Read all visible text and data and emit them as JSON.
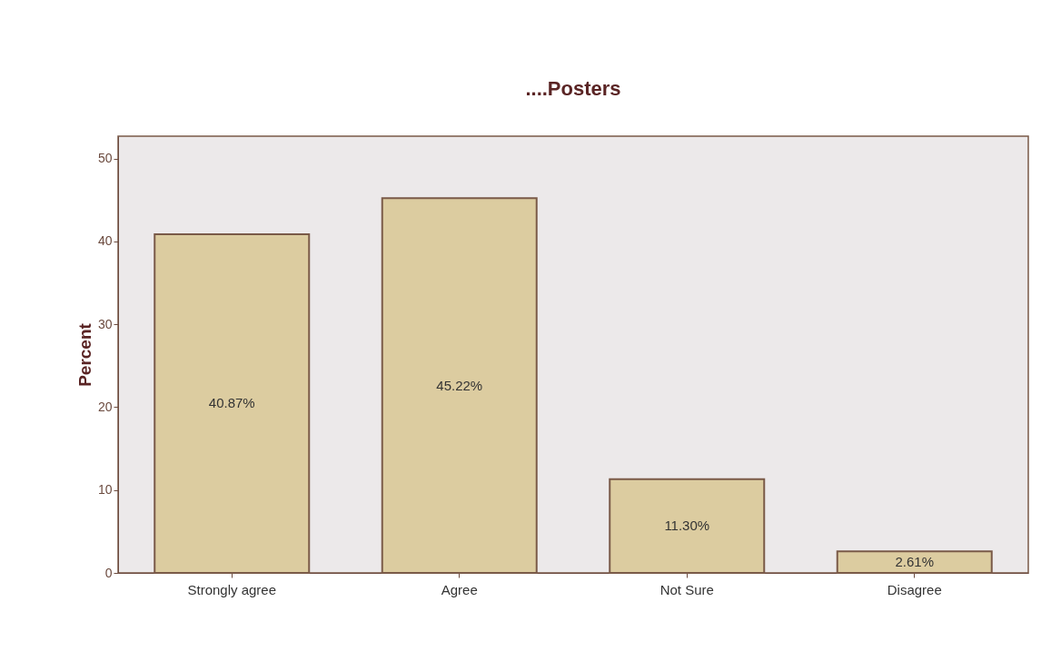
{
  "chart_data": {
    "type": "bar",
    "title": "....Posters",
    "ylabel": "Percent",
    "categories": [
      "Strongly agree",
      "Agree",
      "Not Sure",
      "Disagree"
    ],
    "values": [
      40.87,
      45.22,
      11.3,
      2.61
    ],
    "value_labels": [
      "40.87%",
      "45.22%",
      "11.30%",
      "2.61%"
    ],
    "color": "#dccca0",
    "ylim": [
      0,
      52.7
    ],
    "yticks": [
      0,
      10,
      20,
      30,
      40,
      50
    ],
    "grid": false
  }
}
